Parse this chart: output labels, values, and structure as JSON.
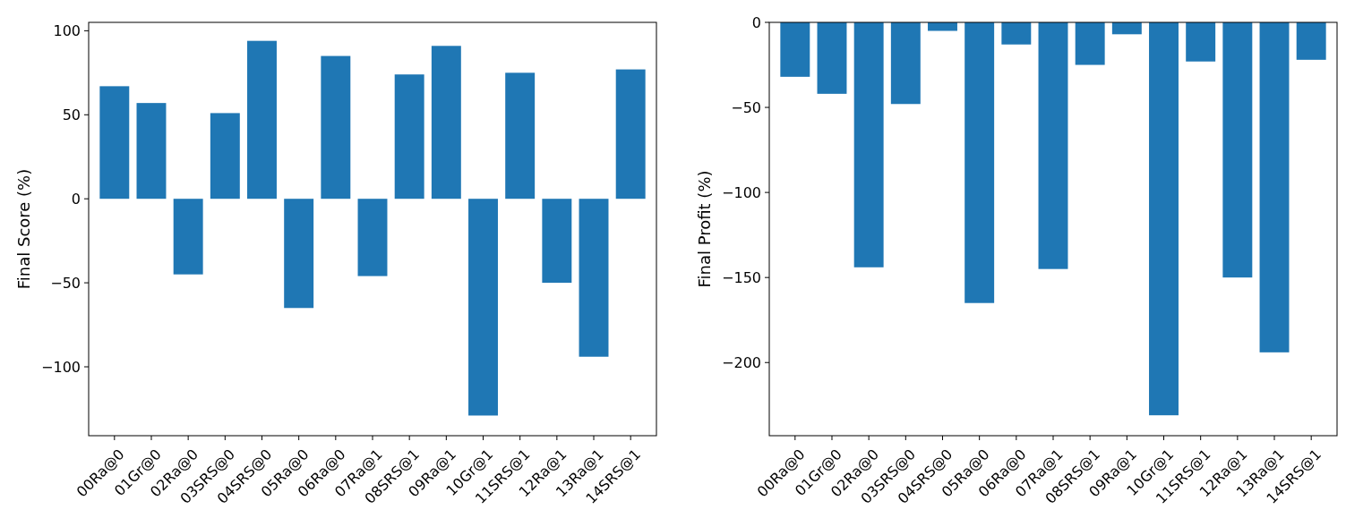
{
  "chart_data": [
    {
      "type": "bar",
      "ylabel": "Final Score (%)",
      "categories": [
        "00Ra@0",
        "01Gr@0",
        "02Ra@0",
        "03SRS@0",
        "04SRS@0",
        "05Ra@0",
        "06Ra@0",
        "07Ra@1",
        "08SRS@1",
        "09Ra@1",
        "10Gr@1",
        "11SRS@1",
        "12Ra@1",
        "13Ra@1",
        "14SRS@1"
      ],
      "color": "#1f77b4",
      "values": [
        67,
        57,
        -45,
        51,
        94,
        -65,
        85,
        -46,
        74,
        91,
        -129,
        75,
        -50,
        -94,
        77
      ],
      "ylim": [
        -141,
        105
      ],
      "yticks": [
        {
          "value": -100,
          "label": "−100"
        },
        {
          "value": -50,
          "label": "−50"
        },
        0,
        50,
        100
      ],
      "grid": false
    },
    {
      "type": "bar",
      "ylabel": "Final Profit (%)",
      "categories": [
        "00Ra@0",
        "01Gr@0",
        "02Ra@0",
        "03SRS@0",
        "04SRS@0",
        "05Ra@0",
        "06Ra@0",
        "07Ra@1",
        "08SRS@1",
        "09Ra@1",
        "10Gr@1",
        "11SRS@1",
        "12Ra@1",
        "13Ra@1",
        "14SRS@1"
      ],
      "color": "#1f77b4",
      "values": [
        -32,
        -42,
        -144,
        -48,
        -5,
        -165,
        -13,
        -145,
        -25,
        -7,
        -231,
        -23,
        -150,
        -194,
        -22
      ],
      "ylim": [
        -243,
        0
      ],
      "yticks": [
        {
          "value": -200,
          "label": "−200"
        },
        {
          "value": -150,
          "label": "−150"
        },
        {
          "value": -100,
          "label": "−100"
        },
        {
          "value": -50,
          "label": "−50"
        },
        0
      ],
      "grid": false
    }
  ]
}
